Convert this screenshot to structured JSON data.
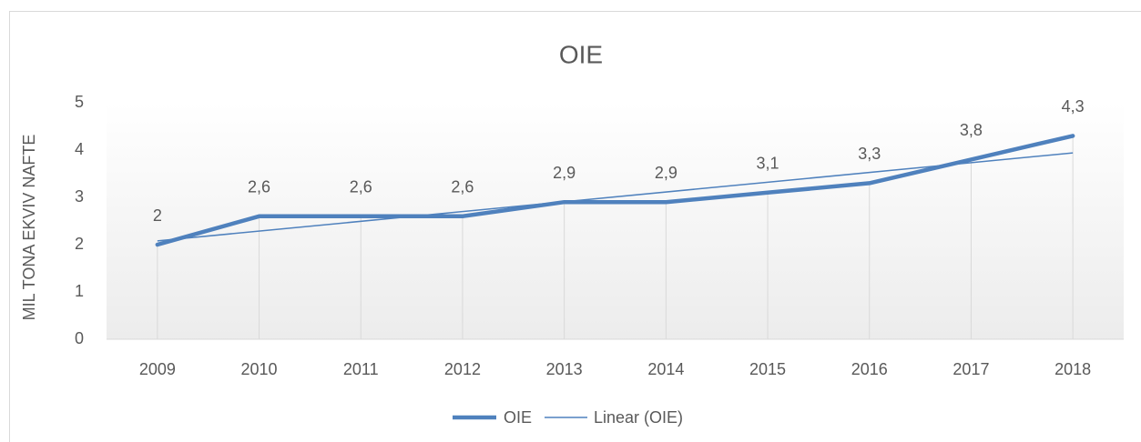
{
  "chart_data": {
    "type": "line",
    "title": "OIE",
    "y_axis_label": "MIL TONA EKVIV NAFTE",
    "categories": [
      "2009",
      "2010",
      "2011",
      "2012",
      "2013",
      "2014",
      "2015",
      "2016",
      "2017",
      "2018"
    ],
    "series": [
      {
        "name": "OIE",
        "color": "#4f81bd",
        "values": [
          2,
          2.6,
          2.6,
          2.6,
          2.9,
          2.9,
          3.1,
          3.3,
          3.8,
          4.3
        ],
        "value_labels": [
          "2",
          "2,6",
          "2,6",
          "2,6",
          "2,9",
          "2,9",
          "3,1",
          "3,3",
          "3,8",
          "4,3"
        ]
      }
    ],
    "trendline": {
      "name": "Linear (OIE)",
      "kind": "linear",
      "color": "#4f81bd"
    },
    "ylim": [
      0,
      5
    ],
    "yticks": [
      0,
      1,
      2,
      3,
      4,
      5
    ],
    "drop_lines": true,
    "legend": "bottom"
  }
}
